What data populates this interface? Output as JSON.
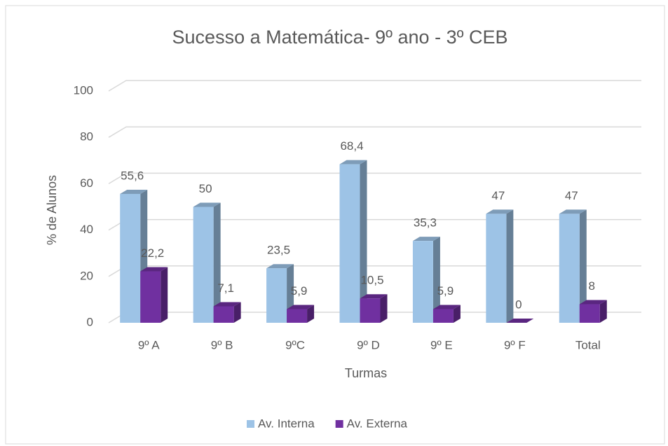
{
  "chart_data": {
    "type": "bar3d",
    "title": "Sucesso a Matemática- 9º ano - 3º CEB",
    "x_label": "Turmas",
    "y_label": "% de Alunos",
    "categories": [
      "9º A",
      "9º B",
      "9ºC",
      "9º D",
      "9º E",
      "9º F",
      "Total"
    ],
    "series": [
      {
        "name": "Av. Interna",
        "color": "#9dc3e6",
        "values": [
          55.6,
          50,
          23.5,
          68.4,
          35.3,
          47,
          47
        ],
        "value_labels": [
          "55,6",
          "50",
          "23,5",
          "68,4",
          "35,3",
          "47",
          "47"
        ]
      },
      {
        "name": "Av. Externa",
        "color": "#7030a0",
        "values": [
          22.2,
          7.1,
          5.9,
          10.5,
          5.9,
          0,
          8
        ],
        "value_labels": [
          "22,2",
          "7,1",
          "5,9",
          "10,5",
          "5,9",
          "0",
          "8"
        ]
      }
    ],
    "ylim": [
      0,
      100
    ],
    "yticks": [
      0,
      20,
      40,
      60,
      80,
      100
    ],
    "grid": true,
    "legend": "bottom"
  }
}
